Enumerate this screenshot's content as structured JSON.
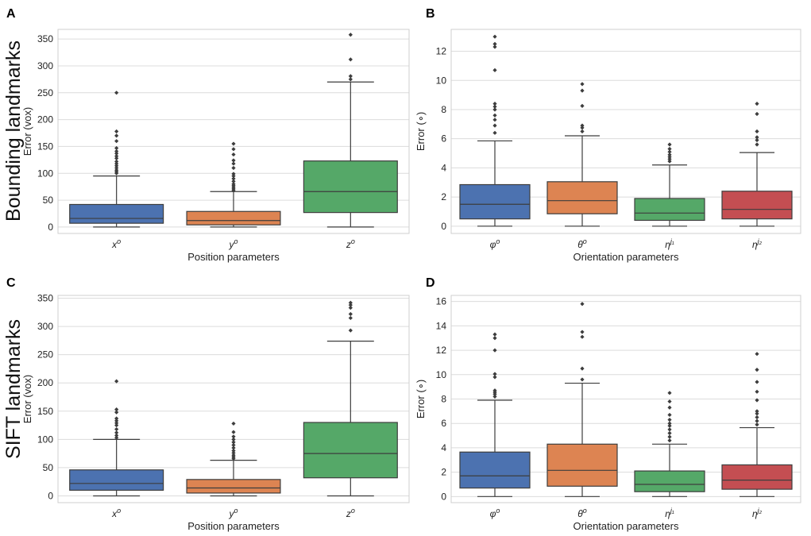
{
  "rows": [
    {
      "label": "Bounding landmarks",
      "panel_ids": [
        "A",
        "B"
      ]
    },
    {
      "label": "SIFT landmarks",
      "panel_ids": [
        "C",
        "D"
      ]
    }
  ],
  "colors": {
    "blue": "#4c72b0",
    "orange": "#dd8452",
    "green": "#55a868",
    "red": "#c44e52",
    "grid": "#dcdcdc",
    "box_edge": "#3d3d3d"
  },
  "chart_data": [
    {
      "id": "A",
      "type": "boxplot",
      "xlabel": "Position parameters",
      "ylabel": "Error (vox)",
      "ylim": [
        -12,
        368
      ],
      "yticks": [
        0,
        50,
        100,
        150,
        200,
        250,
        300,
        350
      ],
      "categories": [
        {
          "label": "x",
          "sup": "o",
          "color": "blue",
          "q1": 7,
          "median": 16,
          "q3": 42,
          "whisker_low": 0,
          "whisker_high": 95,
          "outliers": [
            100,
            103,
            106,
            110,
            114,
            118,
            122,
            128,
            132,
            137,
            141,
            147,
            160,
            170,
            178,
            250
          ]
        },
        {
          "label": "y",
          "sup": "o",
          "color": "orange",
          "q1": 4,
          "median": 12,
          "q3": 29,
          "whisker_low": 0,
          "whisker_high": 66,
          "outliers": [
            68,
            71,
            74,
            77,
            80,
            85,
            90,
            95,
            99,
            110,
            118,
            124,
            135,
            145,
            155
          ]
        },
        {
          "label": "z",
          "sup": "o",
          "color": "green",
          "q1": 27,
          "median": 66,
          "q3": 123,
          "whisker_low": 0,
          "whisker_high": 270,
          "outliers": [
            275,
            281,
            312,
            358
          ]
        }
      ]
    },
    {
      "id": "B",
      "type": "boxplot",
      "xlabel": "Orientation parameters",
      "ylabel": "Error (∘)",
      "ylim": [
        -0.5,
        13.5
      ],
      "yticks": [
        0,
        2,
        4,
        6,
        8,
        10,
        12
      ],
      "categories": [
        {
          "label": "φ",
          "sup": "o",
          "color": "blue",
          "q1": 0.5,
          "median": 1.5,
          "q3": 2.85,
          "whisker_low": 0,
          "whisker_high": 5.85,
          "outliers": [
            6.4,
            6.9,
            7.3,
            7.6,
            8.0,
            8.2,
            8.4,
            10.7,
            12.3,
            12.5,
            13.0
          ]
        },
        {
          "label": "θ",
          "sup": "o",
          "color": "orange",
          "q1": 0.85,
          "median": 1.75,
          "q3": 3.05,
          "whisker_low": 0,
          "whisker_high": 6.2,
          "outliers": [
            6.5,
            6.75,
            6.9,
            8.25,
            9.3,
            9.75
          ]
        },
        {
          "label": "η",
          "sup": "j₁",
          "color": "green",
          "q1": 0.4,
          "median": 0.9,
          "q3": 1.9,
          "whisker_low": 0,
          "whisker_high": 4.2,
          "outliers": [
            4.45,
            4.6,
            4.75,
            4.9,
            5.1,
            5.3,
            5.6
          ]
        },
        {
          "label": "η",
          "sup": "j₂",
          "color": "red",
          "q1": 0.5,
          "median": 1.15,
          "q3": 2.4,
          "whisker_low": 0,
          "whisker_high": 5.05,
          "outliers": [
            5.6,
            5.9,
            6.1,
            6.5,
            7.7,
            8.4
          ]
        }
      ]
    },
    {
      "id": "C",
      "type": "boxplot",
      "xlabel": "Position parameters",
      "ylabel": "Error (vox)",
      "ylim": [
        -12,
        355
      ],
      "yticks": [
        0,
        50,
        100,
        150,
        200,
        250,
        300,
        350
      ],
      "categories": [
        {
          "label": "x",
          "sup": "o",
          "color": "blue",
          "q1": 10,
          "median": 22,
          "q3": 46,
          "whisker_low": 0,
          "whisker_high": 100,
          "outliers": [
            103,
            107,
            112,
            118,
            125,
            129,
            133,
            137,
            148,
            153,
            203
          ]
        },
        {
          "label": "y",
          "sup": "o",
          "color": "orange",
          "q1": 5,
          "median": 14,
          "q3": 29,
          "whisker_low": 0,
          "whisker_high": 63,
          "outliers": [
            66,
            69,
            72,
            76,
            80,
            85,
            90,
            95,
            100,
            105,
            113,
            128
          ]
        },
        {
          "label": "z",
          "sup": "o",
          "color": "green",
          "q1": 32,
          "median": 75,
          "q3": 130,
          "whisker_low": 0,
          "whisker_high": 274,
          "outliers": [
            293,
            315,
            322,
            333,
            338,
            342
          ]
        }
      ]
    },
    {
      "id": "D",
      "type": "boxplot",
      "xlabel": "Orientation parameters",
      "ylabel": "Error (∘)",
      "ylim": [
        -0.5,
        16.5
      ],
      "yticks": [
        0,
        2,
        4,
        6,
        8,
        10,
        12,
        14,
        16
      ],
      "categories": [
        {
          "label": "φ",
          "sup": "o",
          "color": "blue",
          "q1": 0.7,
          "median": 1.7,
          "q3": 3.65,
          "whisker_low": 0,
          "whisker_high": 7.9,
          "outliers": [
            8.2,
            8.4,
            8.55,
            8.7,
            9.8,
            10.05,
            12.0,
            13.0,
            13.3
          ]
        },
        {
          "label": "θ",
          "sup": "o",
          "color": "orange",
          "q1": 0.85,
          "median": 2.15,
          "q3": 4.3,
          "whisker_low": 0,
          "whisker_high": 9.3,
          "outliers": [
            9.6,
            10.5,
            13.1,
            13.5,
            15.8
          ]
        },
        {
          "label": "η",
          "sup": "j₁",
          "color": "green",
          "q1": 0.4,
          "median": 1.0,
          "q3": 2.1,
          "whisker_low": 0,
          "whisker_high": 4.3,
          "outliers": [
            4.6,
            4.9,
            5.2,
            5.5,
            5.8,
            6.0,
            6.3,
            6.7,
            7.3,
            7.8,
            8.5
          ]
        },
        {
          "label": "η",
          "sup": "j₂",
          "color": "red",
          "q1": 0.6,
          "median": 1.35,
          "q3": 2.6,
          "whisker_low": 0,
          "whisker_high": 5.65,
          "outliers": [
            5.9,
            6.2,
            6.5,
            6.8,
            7.0,
            7.9,
            8.6,
            9.4,
            10.4,
            11.7
          ]
        }
      ]
    }
  ]
}
